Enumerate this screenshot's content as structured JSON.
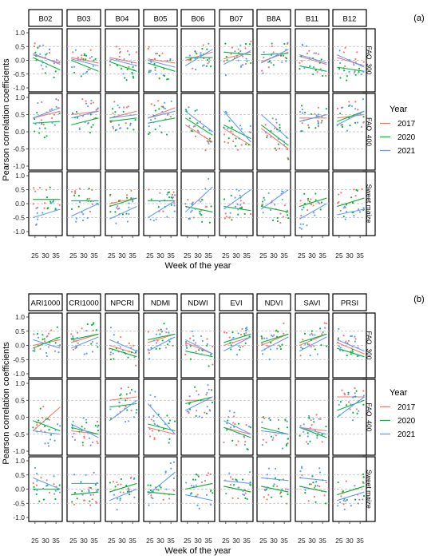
{
  "figure": {
    "colors": {
      "2017": "#f8766d",
      "2020": "#00ba38",
      "2021": "#619cff"
    },
    "x_ticks": [
      25,
      30,
      35
    ],
    "legend": {
      "title": "Year",
      "entries": [
        "2017",
        "2020",
        "2021"
      ],
      "placement": "right"
    }
  },
  "chart_data": [
    {
      "panel_label": "(a)",
      "type": "scatter",
      "facet_columns": [
        "B02",
        "B03",
        "B04",
        "B05",
        "B06",
        "B07",
        "B8A",
        "B11",
        "B12"
      ],
      "facet_rows": [
        "FAO_300",
        "FAO_400",
        "Sweet maize"
      ],
      "xlabel": "Week of the year",
      "ylabel": "Pearson correlation coefficients",
      "xlim": [
        22,
        38
      ],
      "ylim": [
        -1.0,
        1.0
      ],
      "y_ticks": [
        "1.0",
        "0.5",
        "0.0",
        "-0.5",
        "-1.0"
      ],
      "grid": "dashed at -0.5, 0, 0.5",
      "trend_lines": {
        "FAO_300": [
          [
            [
              0.2,
              -0.1
            ],
            [
              0.1,
              -0.35
            ],
            [
              0.25,
              -0.15
            ]
          ],
          [
            [
              0.1,
              -0.1
            ],
            [
              0.0,
              -0.4
            ],
            [
              0.05,
              -0.2
            ]
          ],
          [
            [
              0.1,
              -0.1
            ],
            [
              -0.05,
              -0.4
            ],
            [
              0.05,
              -0.2
            ]
          ],
          [
            [
              0.05,
              -0.1
            ],
            [
              -0.1,
              -0.4
            ],
            [
              0.0,
              -0.25
            ]
          ],
          [
            [
              0.0,
              0.3
            ],
            [
              0.1,
              0.1
            ],
            [
              -0.2,
              0.4
            ]
          ],
          [
            [
              0.05,
              0.3
            ],
            [
              0.3,
              0.2
            ],
            [
              -0.15,
              0.35
            ]
          ],
          [
            [
              -0.05,
              0.3
            ],
            [
              0.2,
              0.25
            ],
            [
              -0.1,
              0.4
            ]
          ],
          [
            [
              0.15,
              -0.15
            ],
            [
              -0.2,
              -0.4
            ],
            [
              0.2,
              -0.1
            ]
          ],
          [
            [
              0.1,
              -0.2
            ],
            [
              -0.25,
              -0.4
            ],
            [
              0.2,
              -0.25
            ]
          ]
        ],
        "FAO_400": [
          [
            [
              0.4,
              0.6
            ],
            [
              0.25,
              0.3
            ],
            [
              0.4,
              0.7
            ]
          ],
          [
            [
              0.5,
              0.6
            ],
            [
              0.2,
              0.4
            ],
            [
              0.4,
              0.6
            ]
          ],
          [
            [
              0.4,
              0.6
            ],
            [
              0.3,
              0.4
            ],
            [
              0.4,
              0.5
            ]
          ],
          [
            [
              0.4,
              0.7
            ],
            [
              0.25,
              0.4
            ],
            [
              0.4,
              0.6
            ]
          ],
          [
            [
              0.2,
              -0.3
            ],
            [
              0.4,
              -0.1
            ],
            [
              0.6,
              0.0
            ]
          ],
          [
            [
              0.1,
              -0.4
            ],
            [
              0.2,
              -0.2
            ],
            [
              0.6,
              -0.3
            ]
          ],
          [
            [
              0.1,
              -0.5
            ],
            [
              0.2,
              -0.4
            ],
            [
              0.5,
              -0.2
            ]
          ],
          [
            [
              0.4,
              0.4
            ],
            [
              0.3,
              0.5
            ],
            [
              0.3,
              0.5
            ]
          ],
          [
            [
              0.4,
              0.5
            ],
            [
              0.3,
              0.6
            ],
            [
              0.2,
              0.6
            ]
          ]
        ],
        "Sweet maize": [
          [
            [
              0.15,
              0.15
            ],
            [
              0.15,
              0.15
            ],
            [
              -0.5,
              -0.2
            ]
          ],
          [
            [
              0.1,
              0.1
            ],
            [
              0.1,
              0.1
            ],
            [
              -0.45,
              0.0
            ]
          ],
          [
            [
              0.0,
              0.2
            ],
            [
              -0.1,
              0.2
            ],
            [
              -0.55,
              -0.1
            ]
          ],
          [
            [
              0.1,
              0.1
            ],
            [
              0.1,
              0.1
            ],
            [
              -0.5,
              0.1
            ]
          ],
          [
            [
              -0.1,
              -0.3
            ],
            [
              -0.1,
              -0.3
            ],
            [
              -0.3,
              0.6
            ]
          ],
          [
            [
              -0.1,
              -0.25
            ],
            [
              -0.1,
              -0.25
            ],
            [
              -0.2,
              0.5
            ]
          ],
          [
            [
              -0.1,
              -0.3
            ],
            [
              -0.1,
              -0.3
            ],
            [
              -0.2,
              0.5
            ]
          ],
          [
            [
              -0.1,
              0.2
            ],
            [
              -0.1,
              0.2
            ],
            [
              -0.55,
              0.0
            ]
          ],
          [
            [
              -0.1,
              0.2
            ],
            [
              -0.1,
              0.2
            ],
            [
              -0.4,
              -0.2
            ]
          ]
        ]
      }
    },
    {
      "panel_label": "(b)",
      "type": "scatter",
      "facet_columns": [
        "ARI1000",
        "CRI1000",
        "NPCRI",
        "NDMI",
        "NDWI",
        "EVI",
        "NDVI",
        "SAVI",
        "PRSI"
      ],
      "facet_rows": [
        "FAO_300",
        "FAO_400",
        "Sweet maize"
      ],
      "xlabel": "Week of the year",
      "ylabel": "Pearson correlation coefficients",
      "xlim": [
        22,
        38
      ],
      "ylim": [
        -1.0,
        1.0
      ],
      "y_ticks": [
        "1.0",
        "0.5",
        "0.0",
        "-0.5",
        "-1.0"
      ],
      "grid": "dashed at -0.5, 0, 0.5",
      "trend_lines": {
        "FAO_300": [
          [
            [
              0.0,
              0.2
            ],
            [
              -0.1,
              0.3
            ],
            [
              0.2,
              -0.1
            ]
          ],
          [
            [
              0.1,
              0.4
            ],
            [
              0.2,
              0.4
            ],
            [
              -0.1,
              0.3
            ]
          ],
          [
            [
              0.0,
              -0.3
            ],
            [
              -0.1,
              -0.4
            ],
            [
              0.2,
              -0.2
            ]
          ],
          [
            [
              0.1,
              0.4
            ],
            [
              0.2,
              0.4
            ],
            [
              -0.2,
              0.3
            ]
          ],
          [
            [
              0.1,
              -0.3
            ],
            [
              -0.2,
              -0.4
            ],
            [
              0.2,
              -0.3
            ]
          ],
          [
            [
              0.0,
              0.3
            ],
            [
              0.1,
              0.4
            ],
            [
              -0.2,
              0.3
            ]
          ],
          [
            [
              0.0,
              0.4
            ],
            [
              0.1,
              0.4
            ],
            [
              -0.2,
              0.3
            ]
          ],
          [
            [
              0.0,
              0.4
            ],
            [
              0.1,
              0.4
            ],
            [
              -0.2,
              0.3
            ]
          ],
          [
            [
              0.1,
              -0.3
            ],
            [
              -0.1,
              -0.4
            ],
            [
              0.2,
              -0.2
            ]
          ]
        ],
        "FAO_400": [
          [
            [
              -0.4,
              0.3
            ],
            [
              -0.1,
              -0.4
            ],
            [
              -0.4,
              -0.5
            ]
          ],
          [
            [
              -0.4,
              -0.5
            ],
            [
              -0.3,
              -0.5
            ],
            [
              -0.2,
              -0.6
            ]
          ],
          [
            [
              0.5,
              0.6
            ],
            [
              0.3,
              0.4
            ],
            [
              -0.1,
              0.5
            ]
          ],
          [
            [
              -0.3,
              -0.5
            ],
            [
              -0.2,
              -0.4
            ],
            [
              0.4,
              -0.5
            ]
          ],
          [
            [
              0.5,
              0.5
            ],
            [
              0.4,
              0.6
            ],
            [
              0.2,
              0.6
            ]
          ],
          [
            [
              -0.3,
              -0.5
            ],
            [
              -0.3,
              -0.6
            ],
            [
              -0.1,
              -0.5
            ]
          ],
          [
            [
              -0.4,
              -0.5
            ],
            [
              -0.3,
              -0.5
            ],
            [
              -0.4,
              -0.5
            ]
          ],
          [
            [
              -0.3,
              -0.4
            ],
            [
              -0.3,
              -0.6
            ],
            [
              -0.3,
              -0.5
            ]
          ],
          [
            [
              0.6,
              0.6
            ],
            [
              0.2,
              0.5
            ],
            [
              0.0,
              0.6
            ]
          ]
        ],
        "Sweet maize": [
          [
            [
              0.0,
              0.0
            ],
            [
              0.0,
              0.0
            ],
            [
              0.4,
              0.0
            ]
          ],
          [
            [
              -0.2,
              -0.1
            ],
            [
              -0.2,
              -0.1
            ],
            [
              0.2,
              0.2
            ]
          ],
          [
            [
              -0.1,
              0.2
            ],
            [
              -0.1,
              0.2
            ],
            [
              -0.4,
              0.0
            ]
          ],
          [
            [
              -0.1,
              -0.2
            ],
            [
              -0.1,
              -0.2
            ],
            [
              -0.2,
              0.6
            ]
          ],
          [
            [
              0.0,
              0.2
            ],
            [
              0.0,
              0.2
            ],
            [
              -0.2,
              -0.4
            ]
          ],
          [
            [
              0.1,
              -0.1
            ],
            [
              0.1,
              -0.1
            ],
            [
              0.3,
              0.2
            ]
          ],
          [
            [
              0.1,
              -0.1
            ],
            [
              0.1,
              -0.1
            ],
            [
              0.4,
              0.3
            ]
          ],
          [
            [
              0.1,
              -0.1
            ],
            [
              0.1,
              -0.1
            ],
            [
              0.4,
              0.3
            ]
          ],
          [
            [
              -0.2,
              0.1
            ],
            [
              -0.2,
              0.1
            ],
            [
              -0.4,
              -0.1
            ]
          ]
        ]
      }
    }
  ]
}
